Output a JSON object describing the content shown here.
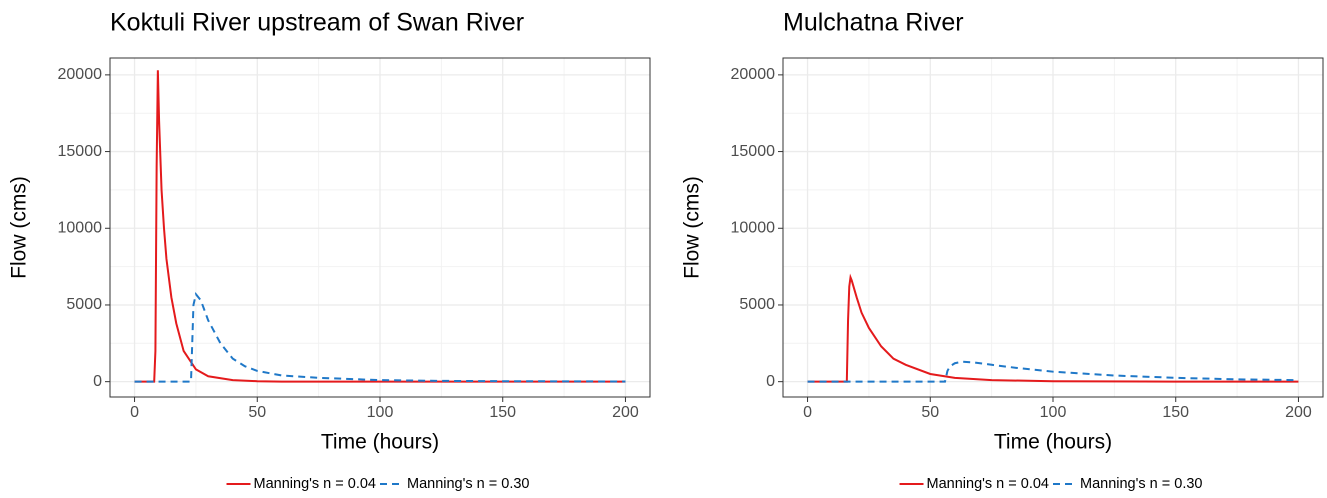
{
  "chart_data": [
    {
      "type": "line",
      "title": "Koktuli River upstream of Swan River",
      "xlabel": "Time (hours)",
      "ylabel": "Flow (cms)",
      "xlim": [
        -10,
        210
      ],
      "ylim": [
        -1000,
        21100
      ],
      "xticks": [
        0,
        50,
        100,
        150,
        200
      ],
      "yticks": [
        0,
        5000,
        10000,
        15000,
        20000
      ],
      "grid": true,
      "legend": "bottom",
      "series": [
        {
          "name": "Manning's n = 0.04",
          "color": "#e41a1c",
          "linestyle": "solid",
          "x": [
            0,
            8,
            8.5,
            9,
            9.5,
            10,
            11,
            12,
            13,
            15,
            17,
            20,
            25,
            30,
            40,
            50,
            60,
            100,
            150,
            200
          ],
          "values": [
            0,
            0,
            2000,
            14000,
            20300,
            17000,
            12500,
            10000,
            8000,
            5500,
            3800,
            2000,
            800,
            350,
            100,
            30,
            0,
            0,
            0,
            0
          ]
        },
        {
          "name": "Manning's n = 0.30",
          "color": "#1f78c8",
          "linestyle": "dashed",
          "x": [
            0,
            23,
            23.5,
            24,
            25,
            27,
            30,
            35,
            40,
            45,
            50,
            60,
            75,
            100,
            125,
            150,
            175,
            200
          ],
          "values": [
            0,
            0,
            2500,
            5000,
            5700,
            5300,
            4000,
            2500,
            1500,
            1000,
            700,
            400,
            250,
            100,
            50,
            30,
            20,
            10
          ]
        }
      ]
    },
    {
      "type": "line",
      "title": "Mulchatna River",
      "xlabel": "Time (hours)",
      "ylabel": "Flow (cms)",
      "xlim": [
        -10,
        210
      ],
      "ylim": [
        -1000,
        21100
      ],
      "xticks": [
        0,
        50,
        100,
        150,
        200
      ],
      "yticks": [
        0,
        5000,
        10000,
        15000,
        20000
      ],
      "grid": true,
      "legend": "bottom",
      "series": [
        {
          "name": "Manning's n = 0.04",
          "color": "#e41a1c",
          "linestyle": "solid",
          "x": [
            0,
            16,
            16.5,
            17,
            17.5,
            18,
            20,
            22,
            25,
            30,
            35,
            40,
            50,
            60,
            75,
            100,
            150,
            200
          ],
          "values": [
            0,
            0,
            4000,
            6200,
            6800,
            6600,
            5500,
            4500,
            3500,
            2300,
            1500,
            1100,
            500,
            250,
            100,
            30,
            0,
            0
          ]
        },
        {
          "name": "Manning's n = 0.30",
          "color": "#1f78c8",
          "linestyle": "dashed",
          "x": [
            0,
            56,
            57,
            58,
            60,
            63,
            68,
            75,
            85,
            100,
            125,
            150,
            175,
            200
          ],
          "values": [
            0,
            0,
            700,
            1000,
            1200,
            1300,
            1250,
            1100,
            900,
            650,
            400,
            250,
            150,
            100
          ]
        }
      ]
    }
  ]
}
